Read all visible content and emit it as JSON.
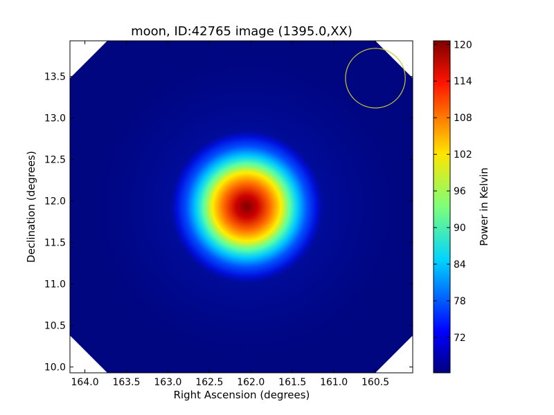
{
  "chart_data": {
    "type": "heatmap",
    "title": "moon, ID:42765 image (1395.0,XX)",
    "xlabel": "Right Ascension (degrees)",
    "ylabel": "Declination (degrees)",
    "xlim": [
      164.18,
      160.05
    ],
    "ylim": [
      9.93,
      13.93
    ],
    "x_ticks": [
      164.0,
      163.5,
      163.0,
      162.5,
      162.0,
      161.5,
      161.0,
      160.5
    ],
    "x_tick_labels": [
      "164.0",
      "163.5",
      "163.0",
      "162.5",
      "162.0",
      "161.5",
      "161.0",
      "160.5"
    ],
    "y_ticks": [
      10.0,
      10.5,
      11.0,
      11.5,
      12.0,
      12.5,
      13.0,
      13.5
    ],
    "y_tick_labels": [
      "10.0",
      "10.5",
      "11.0",
      "11.5",
      "12.0",
      "12.5",
      "13.0",
      "13.5"
    ],
    "colormap": "jet",
    "colorbar": {
      "label": "Power in Kelvin",
      "range": [
        66.2,
        120.6
      ],
      "ticks": [
        72,
        78,
        84,
        90,
        96,
        102,
        108,
        114,
        120
      ],
      "tick_labels": [
        "72",
        "78",
        "84",
        "90",
        "96",
        "102",
        "108",
        "114",
        "120"
      ]
    },
    "peak": {
      "ra": 162.05,
      "dec": 11.93,
      "value": 120
    },
    "background_value": 68,
    "beam_circle": {
      "ra": 160.5,
      "dec": 13.48,
      "radius_deg": 0.36,
      "color": "#c8c832"
    },
    "grid": false,
    "legend": "none"
  }
}
